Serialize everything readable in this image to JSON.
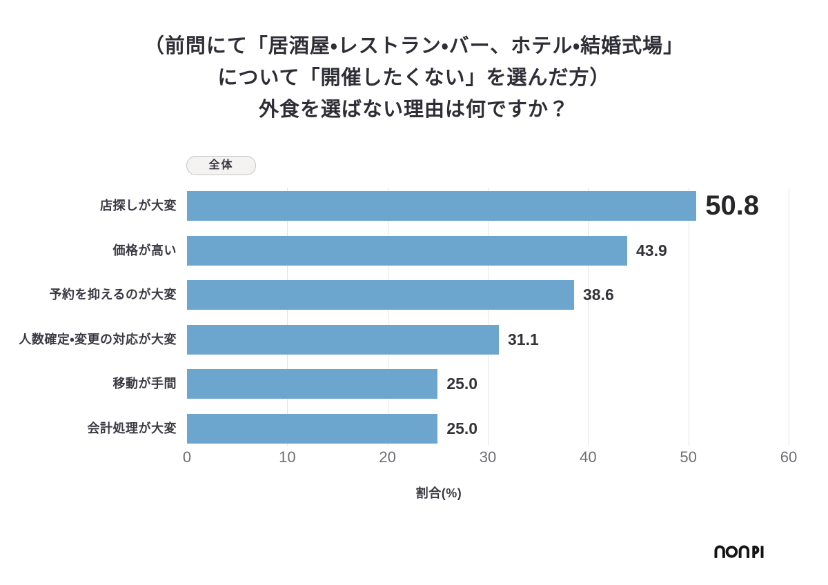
{
  "title": {
    "line1": "（前問にて「居酒屋・レストラン・バー、ホテル・結婚式場」",
    "line2": "について「開催したくない」を選んだ方）",
    "line3": "外食を選ばない理由は何ですか？"
  },
  "filter_badge": {
    "label": "全体"
  },
  "chart_data": {
    "type": "bar",
    "orientation": "horizontal",
    "title": "外食を選ばない理由は何ですか？（全体）",
    "categories": [
      "店探しが大変",
      "価格が高い",
      "予約を抑えるのが大変",
      "人数確定・変更の対応が大変",
      "移動が手間",
      "会計処理が大変"
    ],
    "values": [
      50.8,
      43.9,
      38.6,
      31.1,
      25.0,
      25.0
    ],
    "value_labels": [
      "50.8",
      "43.9",
      "38.6",
      "31.1",
      "25.0",
      "25.0"
    ],
    "highlight_index": 0,
    "xlabel": "割合(%)",
    "xlim": [
      0,
      60
    ],
    "xticks": [
      0,
      10,
      20,
      30,
      40,
      50,
      60
    ],
    "grid": true,
    "legend_position": "none",
    "bar_color": "#6CA5CE"
  },
  "footer": {
    "logo_text": "nonpi"
  }
}
